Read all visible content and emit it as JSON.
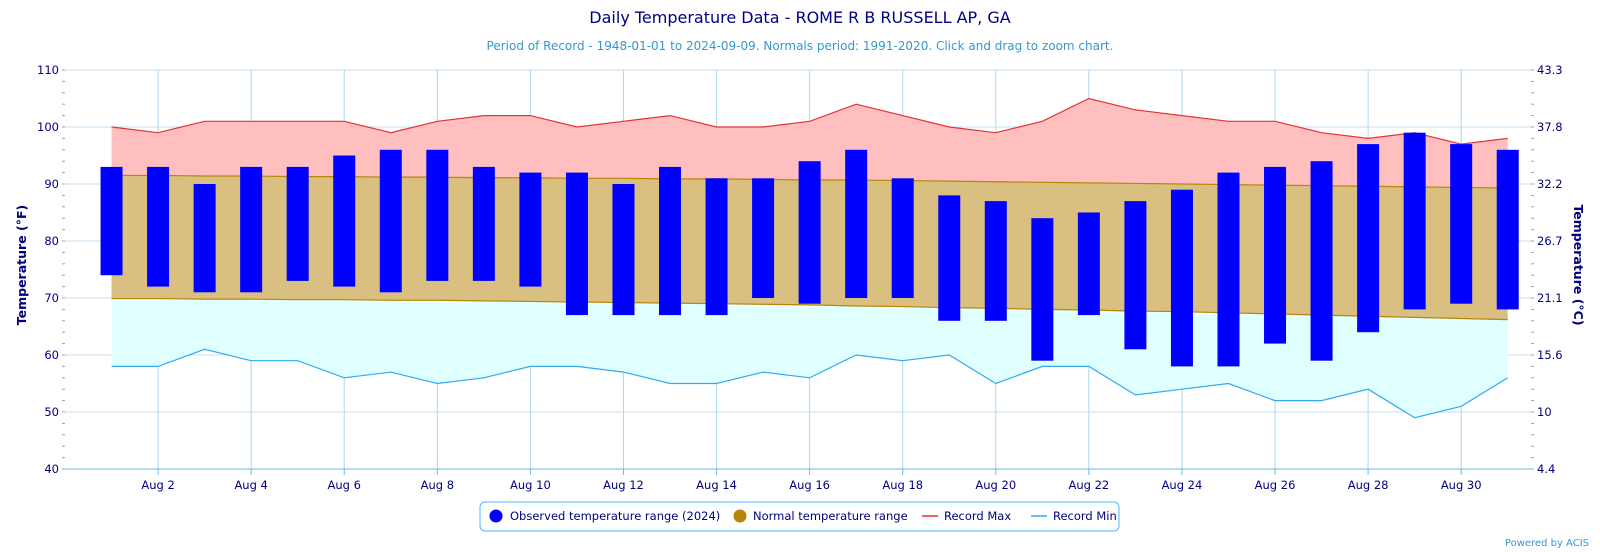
{
  "chart_data": {
    "type": "bar",
    "title": "Daily Temperature Data - ROME R B RUSSELL AP, GA",
    "subtitle": "Period of Record - 1948-01-01 to 2024-09-09. Normals period: 1991-2020. Click and drag to zoom chart.",
    "ylabel": "Temperature (°F)",
    "ylabel_right": "Temperature (°C)",
    "ylim": [
      40,
      110
    ],
    "y_ticks": [
      40,
      50,
      60,
      70,
      80,
      90,
      100,
      110
    ],
    "y_ticks_right": [
      "4.4",
      "10",
      "15.6",
      "21.1",
      "26.7",
      "32.2",
      "37.8",
      "43.3"
    ],
    "x": [
      1,
      2,
      3,
      4,
      5,
      6,
      7,
      8,
      9,
      10,
      11,
      12,
      13,
      14,
      15,
      16,
      17,
      18,
      19,
      20,
      21,
      22,
      23,
      24,
      25,
      26,
      27,
      28,
      29,
      30,
      31
    ],
    "xlim": [
      0,
      31.5
    ],
    "x_ticks": [
      2,
      4,
      6,
      8,
      10,
      12,
      14,
      16,
      18,
      20,
      22,
      24,
      26,
      28,
      30
    ],
    "x_tick_labels": [
      "Aug 2",
      "Aug 4",
      "Aug 6",
      "Aug 8",
      "Aug 10",
      "Aug 12",
      "Aug 14",
      "Aug 16",
      "Aug 18",
      "Aug 20",
      "Aug 22",
      "Aug 24",
      "Aug 26",
      "Aug 28",
      "Aug 30"
    ],
    "grid": true,
    "legend_position": "bottom-center",
    "series": [
      {
        "name": "Observed temperature range (2024)",
        "kind": "range-bar",
        "color": "#0000ff",
        "low": [
          74,
          72,
          71,
          71,
          73,
          72,
          71,
          73,
          73,
          72,
          67,
          67,
          67,
          67,
          70,
          69,
          70,
          70,
          66,
          66,
          59,
          67,
          61,
          58,
          58,
          62,
          59,
          64,
          68,
          69,
          68
        ],
        "high": [
          93,
          93,
          90,
          93,
          93,
          95,
          96,
          96,
          93,
          92,
          92,
          90,
          93,
          91,
          91,
          94,
          96,
          91,
          88,
          87,
          84,
          85,
          87,
          89,
          92,
          93,
          94,
          97,
          99,
          97,
          96
        ]
      },
      {
        "name": "Normal temperature range",
        "kind": "range-area",
        "color": "#b8860b",
        "fill": "#d9bf80",
        "low": [
          69.9,
          69.9,
          69.8,
          69.8,
          69.7,
          69.7,
          69.6,
          69.6,
          69.5,
          69.4,
          69.3,
          69.2,
          69.1,
          69.0,
          68.9,
          68.8,
          68.6,
          68.5,
          68.3,
          68.2,
          68.0,
          67.9,
          67.7,
          67.6,
          67.4,
          67.2,
          67.0,
          66.8,
          66.6,
          66.4,
          66.2
        ],
        "high": [
          91.5,
          91.5,
          91.4,
          91.4,
          91.3,
          91.3,
          91.2,
          91.2,
          91.1,
          91.1,
          91.0,
          91.0,
          90.9,
          90.9,
          90.8,
          90.7,
          90.7,
          90.6,
          90.5,
          90.4,
          90.3,
          90.2,
          90.1,
          90.0,
          89.9,
          89.8,
          89.7,
          89.6,
          89.5,
          89.4,
          89.3
        ]
      },
      {
        "name": "Record Max",
        "kind": "line",
        "color": "#e53333",
        "fill": "#ffbfbf",
        "values": [
          100,
          99,
          101,
          101,
          101,
          101,
          99,
          101,
          102,
          102,
          100,
          101,
          102,
          100,
          100,
          101,
          104,
          102,
          100,
          99,
          101,
          105,
          103,
          102,
          101,
          101,
          99,
          98,
          99,
          97,
          98
        ]
      },
      {
        "name": "Record Min",
        "kind": "line",
        "color": "#33aaee",
        "fill": "#e0ffff",
        "values": [
          58,
          58,
          61,
          59,
          59,
          56,
          57,
          55,
          56,
          58,
          58,
          57,
          55,
          55,
          57,
          56,
          60,
          59,
          60,
          55,
          58,
          58,
          53,
          54,
          55,
          52,
          52,
          54,
          49,
          51,
          56
        ]
      }
    ]
  },
  "credit": "Powered by ACIS"
}
